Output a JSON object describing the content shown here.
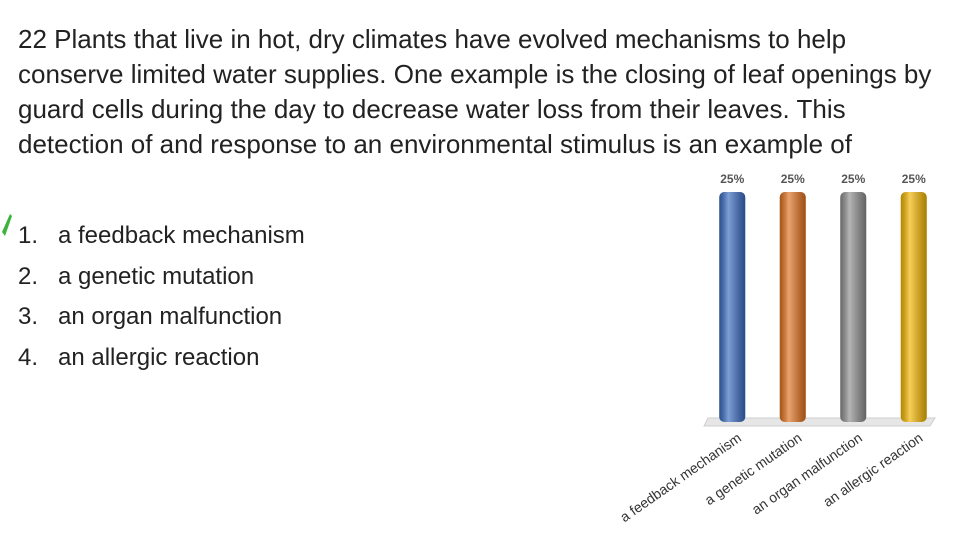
{
  "question": {
    "number": "22",
    "text": "Plants that live in hot, dry climates have evolved mechanisms to help conserve limited water supplies. One example is the closing of leaf openings by guard cells during the day to decrease water loss from their leaves. This detection of and response to an environmental stimulus is an example of"
  },
  "options": [
    {
      "number": "1.",
      "text": "a feedback mechanism"
    },
    {
      "number": "2.",
      "text": "a genetic mutation"
    },
    {
      "number": "3.",
      "text": "an organ malfunction"
    },
    {
      "number": "4.",
      "text": "an allergic reaction"
    }
  ],
  "chart_data": {
    "type": "bar",
    "categories": [
      "a feedback mechanism",
      "a genetic mutation",
      "an organ malfunction",
      "an allergic reaction"
    ],
    "values": [
      25,
      25,
      25,
      25
    ],
    "value_labels": [
      "25%",
      "25%",
      "25%",
      "25%"
    ],
    "colors": [
      "#3a6bc0",
      "#e0711f",
      "#8e8e8e",
      "#f2b500"
    ],
    "ylim": [
      0,
      25
    ]
  }
}
